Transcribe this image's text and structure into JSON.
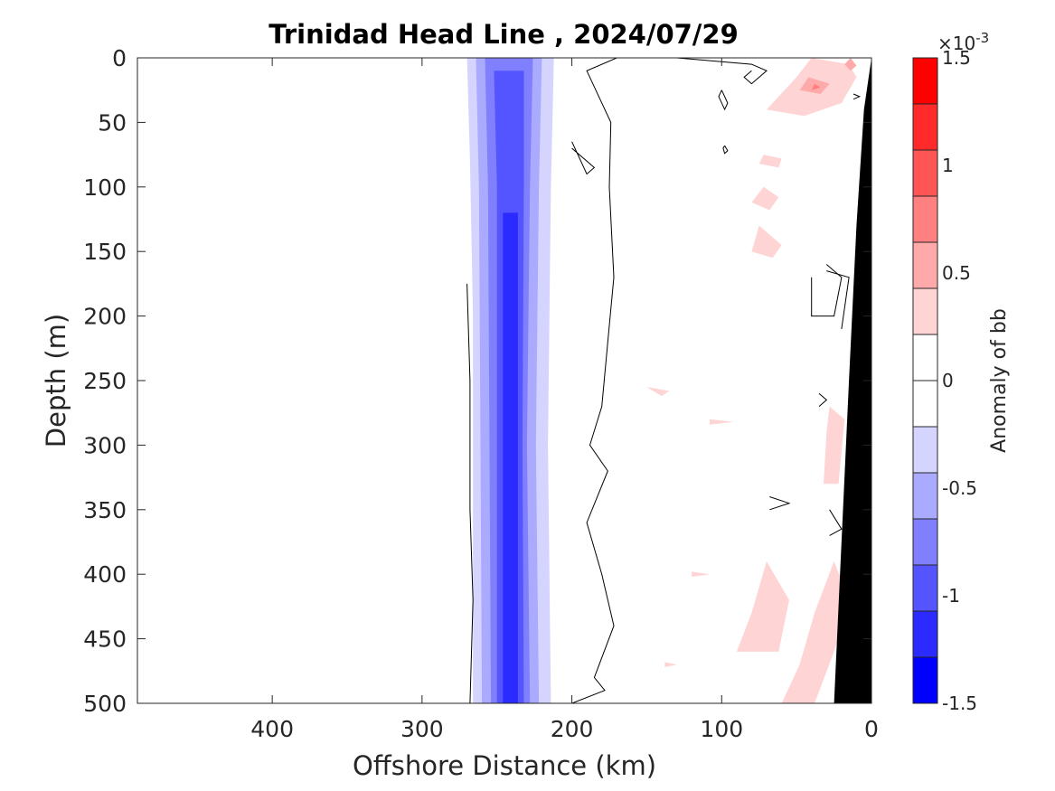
{
  "chart_data": {
    "type": "heatmap",
    "title": "Trinidad Head Line , 2024/07/29",
    "xlabel": "Offshore Distance (km)",
    "ylabel": "Depth (m)",
    "xlim": [
      490,
      0
    ],
    "ylim": [
      500,
      0
    ],
    "xticks": [
      {
        "value": 400,
        "label": "400"
      },
      {
        "value": 300,
        "label": "300"
      },
      {
        "value": 200,
        "label": "200"
      },
      {
        "value": 100,
        "label": "100"
      },
      {
        "value": 0,
        "label": "0"
      }
    ],
    "yticks": [
      {
        "value": 0,
        "label": "0"
      },
      {
        "value": 50,
        "label": "50"
      },
      {
        "value": 100,
        "label": "100"
      },
      {
        "value": 150,
        "label": "150"
      },
      {
        "value": 200,
        "label": "200"
      },
      {
        "value": 250,
        "label": "250"
      },
      {
        "value": 300,
        "label": "300"
      },
      {
        "value": 350,
        "label": "350"
      },
      {
        "value": 400,
        "label": "400"
      },
      {
        "value": 450,
        "label": "450"
      },
      {
        "value": 500,
        "label": "500"
      }
    ],
    "colorbar": {
      "label": "Anomaly of bb",
      "exponent_label": "×10",
      "exponent_power": "-3",
      "range": [
        -1.5,
        1.5
      ],
      "levels": [
        -1.5,
        -1.25,
        -1,
        -0.75,
        -0.5,
        -0.25,
        0,
        0.25,
        0.5,
        0.75,
        1,
        1.25,
        1.5
      ],
      "colors": [
        "#0000ff",
        "#2b2bff",
        "#5555ff",
        "#8080ff",
        "#aaaaff",
        "#d4d4ff",
        "#ffffff",
        "#ffffff",
        "#ffd4d4",
        "#ffaaaa",
        "#ff8080",
        "#ff5555",
        "#ff2b2b",
        "#ff0000"
      ],
      "ticks": [
        {
          "value": 1.5,
          "label": "1.5"
        },
        {
          "value": 1,
          "label": "1"
        },
        {
          "value": 0.5,
          "label": "0.5"
        },
        {
          "value": 0,
          "label": "0"
        },
        {
          "value": -0.5,
          "label": "-0.5"
        },
        {
          "value": -1,
          "label": "-1"
        },
        {
          "value": -1.5,
          "label": "-1.5"
        }
      ]
    },
    "negative_band": {
      "description_units": "km offshore vs depth m",
      "levels": [
        {
          "level": -0.25,
          "color": "#d4d4ff",
          "left": [
            [
              270,
              0
            ],
            [
              268,
              80
            ],
            [
              266,
              200
            ],
            [
              266,
              500
            ]
          ],
          "right": [
            [
              212,
              0
            ],
            [
              214,
              100
            ],
            [
              216,
              300
            ],
            [
              214,
              500
            ]
          ]
        },
        {
          "level": -0.5,
          "color": "#aaaaff",
          "left": [
            [
              264,
              0
            ],
            [
              262,
              100
            ],
            [
              261,
              300
            ],
            [
              260,
              500
            ]
          ],
          "right": [
            [
              220,
              0
            ],
            [
              222,
              100
            ],
            [
              224,
              300
            ],
            [
              222,
              500
            ]
          ]
        },
        {
          "level": -0.75,
          "color": "#8080ff",
          "left": [
            [
              258,
              0
            ],
            [
              256,
              100
            ],
            [
              255,
              300
            ],
            [
              254,
              500
            ]
          ],
          "right": [
            [
              226,
              0
            ],
            [
              228,
              100
            ],
            [
              230,
              300
            ],
            [
              228,
              500
            ]
          ]
        },
        {
          "level": -1,
          "color": "#5555ff",
          "left": [
            [
              252,
              10
            ],
            [
              250,
              100
            ],
            [
              250,
              300
            ],
            [
              250,
              500
            ]
          ],
          "right": [
            [
              232,
              10
            ],
            [
              232,
              100
            ],
            [
              233,
              300
            ],
            [
              232,
              500
            ]
          ]
        },
        {
          "level": -1.25,
          "color": "#2b2bff",
          "left": [
            [
              246,
              120
            ],
            [
              246,
              300
            ],
            [
              246,
              500
            ]
          ],
          "right": [
            [
              236,
              120
            ],
            [
              236,
              300
            ],
            [
              236,
              500
            ]
          ]
        }
      ]
    },
    "positive_patches": [
      {
        "color": "#ffd4d4",
        "points": [
          [
            40,
            0
          ],
          [
            15,
            5
          ],
          [
            10,
            15
          ],
          [
            20,
            35
          ],
          [
            45,
            45
          ],
          [
            70,
            40
          ],
          [
            50,
            15
          ]
        ]
      },
      {
        "color": "#ffaaaa",
        "points": [
          [
            42,
            15
          ],
          [
            28,
            20
          ],
          [
            34,
            28
          ],
          [
            48,
            25
          ]
        ]
      },
      {
        "color": "#ff8080",
        "points": [
          [
            38,
            20
          ],
          [
            34,
            23
          ],
          [
            40,
            25
          ]
        ]
      },
      {
        "color": "#ffaaaa",
        "points": [
          [
            14,
            0
          ],
          [
            10,
            6
          ],
          [
            14,
            10
          ],
          [
            18,
            5
          ]
        ]
      },
      {
        "color": "#ffd4d4",
        "points": [
          [
            72,
            75
          ],
          [
            60,
            78
          ],
          [
            62,
            85
          ],
          [
            75,
            82
          ]
        ]
      },
      {
        "color": "#ffd4d4",
        "points": [
          [
            72,
            100
          ],
          [
            62,
            108
          ],
          [
            68,
            118
          ],
          [
            80,
            112
          ]
        ]
      },
      {
        "color": "#ffd4d4",
        "points": [
          [
            75,
            130
          ],
          [
            60,
            145
          ],
          [
            66,
            155
          ],
          [
            80,
            150
          ]
        ]
      },
      {
        "color": "#ffd4d4",
        "points": [
          [
            150,
            255
          ],
          [
            135,
            258
          ],
          [
            140,
            262
          ]
        ]
      },
      {
        "color": "#ffd4d4",
        "points": [
          [
            108,
            280
          ],
          [
            92,
            282
          ],
          [
            108,
            284
          ]
        ]
      },
      {
        "color": "#ffd4d4",
        "points": [
          [
            28,
            270
          ],
          [
            18,
            280
          ],
          [
            22,
            330
          ],
          [
            32,
            330
          ],
          [
            30,
            290
          ]
        ]
      },
      {
        "color": "#ffd4d4",
        "points": [
          [
            70,
            390
          ],
          [
            55,
            420
          ],
          [
            62,
            460
          ],
          [
            90,
            460
          ],
          [
            80,
            430
          ]
        ]
      },
      {
        "color": "#ffd4d4",
        "points": [
          [
            25,
            390
          ],
          [
            15,
            420
          ],
          [
            25,
            460
          ],
          [
            38,
            500
          ],
          [
            60,
            500
          ],
          [
            48,
            470
          ],
          [
            38,
            430
          ]
        ]
      },
      {
        "color": "#ffd4d4",
        "points": [
          [
            120,
            398
          ],
          [
            108,
            400
          ],
          [
            120,
            402
          ]
        ]
      },
      {
        "color": "#ffd4d4",
        "points": [
          [
            138,
            468
          ],
          [
            130,
            470
          ],
          [
            138,
            472
          ]
        ]
      }
    ],
    "zero_contours": [
      {
        "points": [
          [
            270,
            175
          ],
          [
            268,
            250
          ],
          [
            268,
            350
          ],
          [
            266,
            420
          ],
          [
            268,
            500
          ]
        ]
      },
      {
        "points": [
          [
            200,
            500
          ],
          [
            178,
            490
          ],
          [
            185,
            480
          ],
          [
            172,
            440
          ],
          [
            180,
            400
          ],
          [
            190,
            360
          ],
          [
            176,
            320
          ],
          [
            188,
            300
          ],
          [
            180,
            270
          ],
          [
            176,
            220
          ],
          [
            172,
            170
          ],
          [
            175,
            100
          ],
          [
            174,
            50
          ],
          [
            190,
            10
          ],
          [
            170,
            0
          ]
        ]
      },
      {
        "points": [
          [
            200,
            65
          ],
          [
            190,
            90
          ],
          [
            185,
            85
          ],
          [
            200,
            70
          ]
        ]
      },
      {
        "points": [
          [
            100,
            25
          ],
          [
            96,
            35
          ],
          [
            98,
            40
          ],
          [
            102,
            30
          ],
          [
            100,
            25
          ]
        ]
      },
      {
        "points": [
          [
            98,
            68
          ],
          [
            96,
            72
          ],
          [
            98,
            74
          ],
          [
            99,
            70
          ],
          [
            98,
            68
          ]
        ]
      },
      {
        "points": [
          [
            130,
            0
          ],
          [
            80,
            5
          ],
          [
            70,
            10
          ],
          [
            80,
            20
          ],
          [
            85,
            15
          ],
          [
            80,
            10
          ]
        ]
      },
      {
        "points": [
          [
            30,
            160
          ],
          [
            20,
            170
          ],
          [
            25,
            200
          ],
          [
            40,
            200
          ],
          [
            40,
            170
          ]
        ]
      },
      {
        "points": [
          [
            35,
            260
          ],
          [
            30,
            265
          ],
          [
            35,
            270
          ]
        ]
      },
      {
        "points": [
          [
            68,
            340
          ],
          [
            55,
            345
          ],
          [
            68,
            350
          ]
        ]
      },
      {
        "points": [
          [
            28,
            350
          ],
          [
            20,
            365
          ],
          [
            28,
            370
          ]
        ]
      },
      {
        "points": [
          [
            30,
            165
          ],
          [
            15,
            170
          ],
          [
            20,
            210
          ]
        ]
      },
      {
        "points": [
          [
            12,
            28
          ],
          [
            8,
            30
          ],
          [
            12,
            32
          ]
        ]
      }
    ],
    "bathymetry_mask": {
      "color": "#000000",
      "points": [
        [
          0,
          0
        ],
        [
          0,
          500
        ],
        [
          25,
          500
        ],
        [
          15,
          250
        ],
        [
          10,
          130
        ],
        [
          5,
          40
        ]
      ]
    }
  }
}
